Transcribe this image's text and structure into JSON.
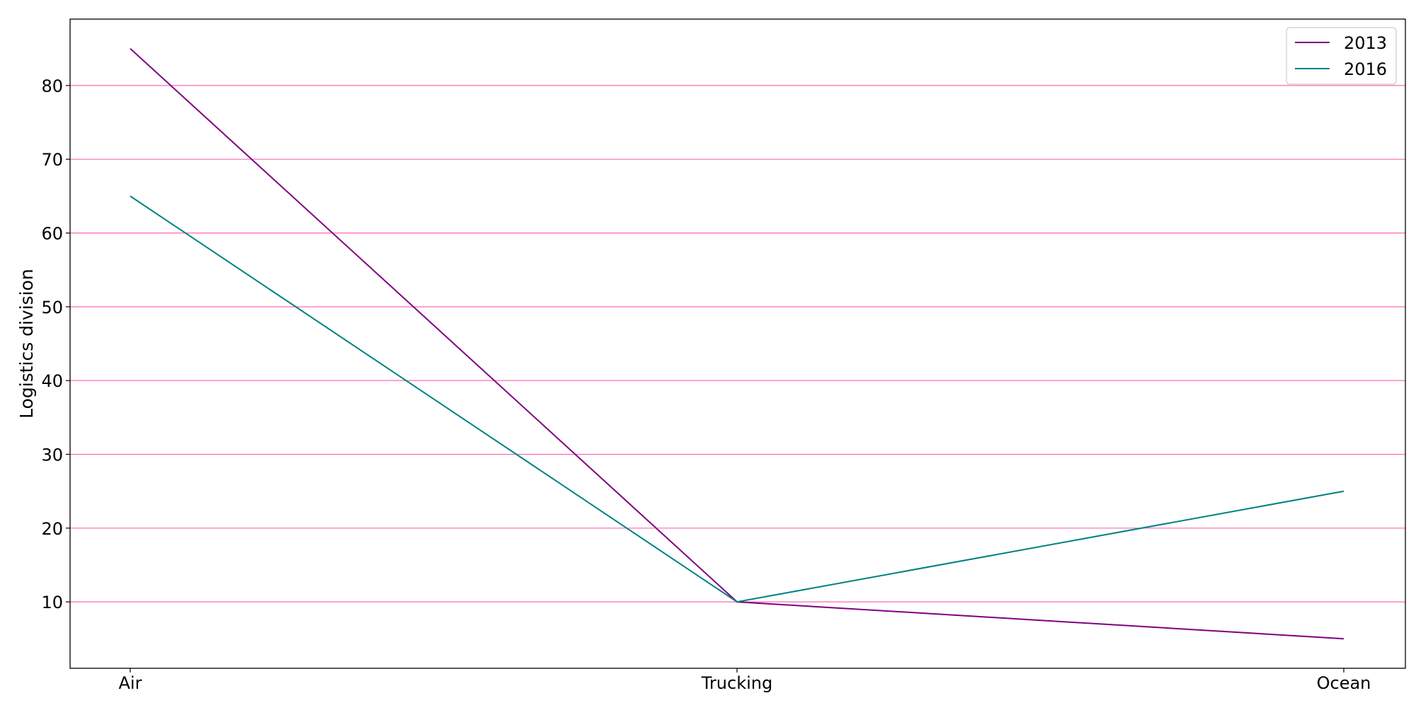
{
  "chart_data": {
    "type": "line",
    "title": "",
    "xlabel": "",
    "ylabel": "Logistics division",
    "categories": [
      "Air",
      "Trucking",
      "Ocean"
    ],
    "series": [
      {
        "name": "2013",
        "values": [
          85,
          10,
          5
        ],
        "color": "#800080"
      },
      {
        "name": "2016",
        "values": [
          65,
          10,
          25
        ],
        "color": "#008080"
      }
    ],
    "ylim": [
      1,
      89
    ],
    "yticks": [
      10,
      20,
      30,
      40,
      50,
      60,
      70,
      80
    ],
    "grid": {
      "axis": "y",
      "color": "#ff69b4"
    },
    "legend": {
      "position": "top-right"
    }
  }
}
